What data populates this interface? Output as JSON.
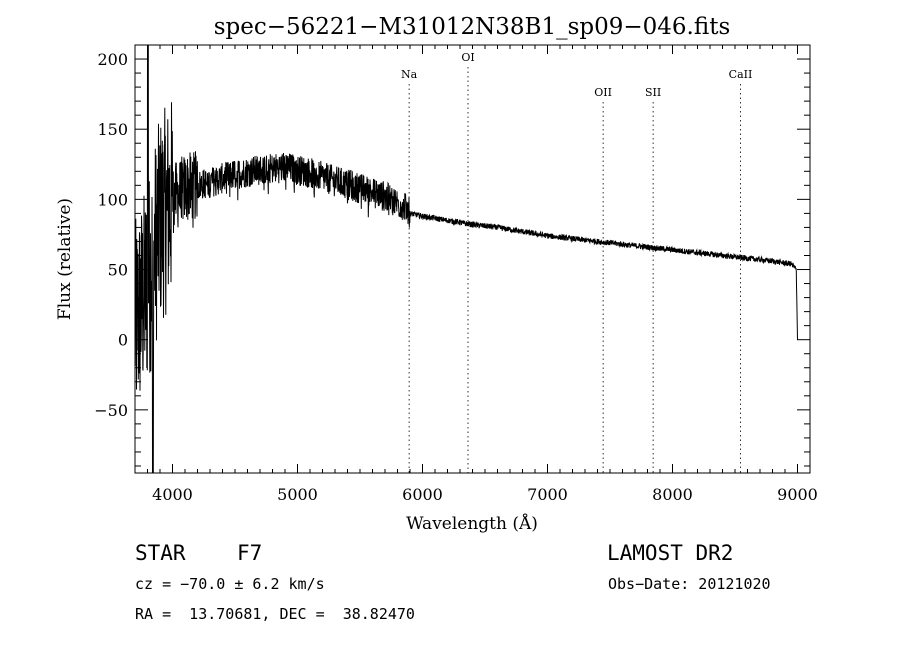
{
  "chart_data": {
    "type": "line",
    "title": "spec−56221−M31012N38B1_sp09−046.fits",
    "xlabel": "Wavelength (Å)",
    "ylabel": "Flux (relative)",
    "xlim": [
      3700,
      9100
    ],
    "ylim": [
      -95,
      210
    ],
    "x_ticks": [
      4000,
      5000,
      6000,
      7000,
      8000,
      9000
    ],
    "x_tick_labels": [
      "4000",
      "5000",
      "6000",
      "7000",
      "8000",
      "9000"
    ],
    "y_ticks": [
      -50,
      0,
      50,
      100,
      150,
      200
    ],
    "y_tick_labels": [
      "−50",
      "0",
      "50",
      "100",
      "150",
      "200"
    ],
    "grid": false,
    "line_color": "#000000",
    "spectrum_anchors": {
      "x": [
        3700,
        3800,
        3900,
        4000,
        4100,
        4300,
        4500,
        4700,
        4900,
        5100,
        5300,
        5500,
        5700,
        5850,
        5900,
        6000,
        6200,
        6400,
        6600,
        6800,
        7000,
        7200,
        7400,
        7600,
        7800,
        8000,
        8200,
        8400,
        8600,
        8800,
        8950,
        8990,
        9000
      ],
      "y": [
        10,
        40,
        85,
        100,
        108,
        112,
        118,
        121,
        123,
        119,
        113,
        108,
        102,
        95,
        90,
        88,
        85,
        82,
        80,
        77,
        74,
        72,
        70,
        68,
        66,
        64,
        62,
        60,
        58,
        56,
        54,
        50,
        0
      ]
    },
    "emission_lines": [
      {
        "label": "Na",
        "x": 5893
      },
      {
        "label": "OI",
        "x": 6364
      },
      {
        "label": "OII",
        "x": 7445
      },
      {
        "label": "SII",
        "x": 7845
      },
      {
        "label": "CaII",
        "x": 8544
      }
    ]
  },
  "info": {
    "object_type": "STAR",
    "spectral_class": "F7",
    "survey": "LAMOST DR2",
    "cz": "cz = −70.0 ± 6.2 km/s",
    "obs_date": "Obs−Date: 20121020",
    "coords": "RA =  13.70681, DEC =  38.82470"
  }
}
